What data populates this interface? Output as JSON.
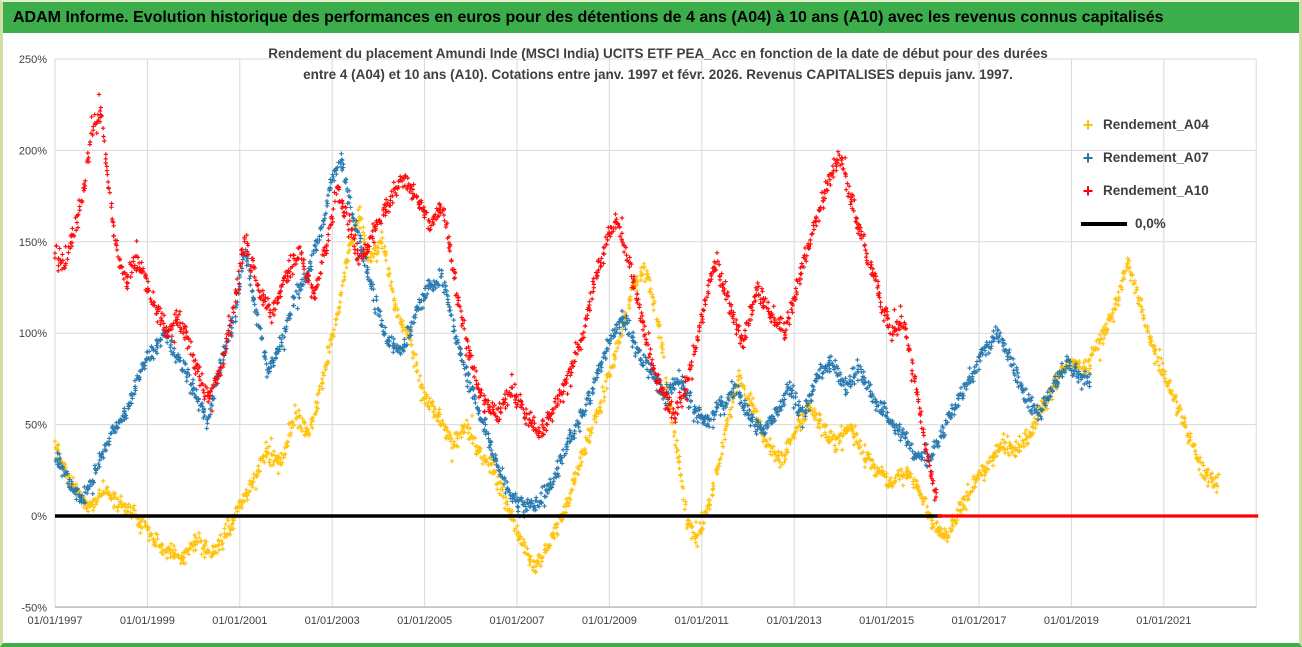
{
  "header": {
    "title": "ADAM Informe. Evolution historique des performances en euros pour des détentions de 4 ans (A04) à 10 ans (A10) avec les revenus connus capitalisés"
  },
  "chart_data": {
    "type": "scatter",
    "title_lines": [
      "Rendement du placement Amundi Inde (MSCI India) UCITS ETF PEA_Acc en fonction de la date de début pour des durées",
      "entre 4 (A04) et 10 ans (A10). Cotations entre janv. 1997 et févr. 2026. Revenus CAPITALISES depuis janv. 1997."
    ],
    "grid": true,
    "x_axis": {
      "start_year": 1997,
      "grid_end_year": 2023,
      "grid_step_years": 2,
      "tick_years": [
        1997,
        1999,
        2001,
        2003,
        2005,
        2007,
        2009,
        2011,
        2013,
        2015,
        2017,
        2019,
        2021
      ],
      "tick_labels": [
        "01/01/1997",
        "01/01/1999",
        "01/01/2001",
        "01/01/2003",
        "01/01/2005",
        "01/01/2007",
        "01/01/2009",
        "01/01/2011",
        "01/01/2013",
        "01/01/2015",
        "01/01/2017",
        "01/01/2019",
        "01/01/2021"
      ]
    },
    "y_axis": {
      "unit": "%",
      "min": -50,
      "max": 250,
      "tick_values": [
        250,
        200,
        150,
        100,
        50,
        0,
        -50
      ],
      "tick_labels": [
        "250%",
        "200%",
        "150%",
        "100%",
        "50%",
        "0%",
        "-50%"
      ]
    },
    "legend": {
      "position": "right",
      "entries": [
        {
          "label": "Rendement_A04",
          "color": "#FFC000",
          "marker": "+"
        },
        {
          "label": "Rendement_A07",
          "color": "#1F74AD",
          "marker": "+"
        },
        {
          "label": "Rendement_A10",
          "color": "#FF0000",
          "marker": "+"
        },
        {
          "label": "0,0%",
          "color": "#000000",
          "marker": "line"
        }
      ]
    },
    "zero_line": {
      "label": "0,0%",
      "color": "#000000",
      "value": 0,
      "from_year": 1997,
      "to_year": 2016.2,
      "width": 3.5
    },
    "series": [
      {
        "name": "Rendement_A04",
        "color": "#FFC000",
        "marker": "+",
        "spread": 7,
        "points_per_year": 80,
        "control_points": [
          [
            1997.0,
            40
          ],
          [
            1997.3,
            20
          ],
          [
            1997.7,
            6
          ],
          [
            1998.1,
            12
          ],
          [
            1998.5,
            5
          ],
          [
            1998.9,
            -5
          ],
          [
            1999.3,
            -18
          ],
          [
            1999.8,
            -23
          ],
          [
            2000.1,
            -12
          ],
          [
            2000.4,
            -20
          ],
          [
            2000.8,
            -5
          ],
          [
            2001.2,
            15
          ],
          [
            2001.6,
            35
          ],
          [
            2001.9,
            30
          ],
          [
            2002.2,
            55
          ],
          [
            2002.5,
            45
          ],
          [
            2002.8,
            75
          ],
          [
            2003.1,
            110
          ],
          [
            2003.4,
            150
          ],
          [
            2003.6,
            165
          ],
          [
            2003.8,
            140
          ],
          [
            2004.1,
            150
          ],
          [
            2004.4,
            110
          ],
          [
            2004.7,
            95
          ],
          [
            2005.0,
            65
          ],
          [
            2005.3,
            55
          ],
          [
            2005.6,
            40
          ],
          [
            2005.9,
            50
          ],
          [
            2006.2,
            35
          ],
          [
            2006.5,
            25
          ],
          [
            2006.8,
            5
          ],
          [
            2007.1,
            -15
          ],
          [
            2007.4,
            -28
          ],
          [
            2007.7,
            -15
          ],
          [
            2008.0,
            0
          ],
          [
            2008.3,
            25
          ],
          [
            2008.6,
            45
          ],
          [
            2008.9,
            70
          ],
          [
            2009.2,
            95
          ],
          [
            2009.5,
            125
          ],
          [
            2009.8,
            135
          ],
          [
            2010.1,
            100
          ],
          [
            2010.3,
            60
          ],
          [
            2010.5,
            30
          ],
          [
            2010.7,
            -5
          ],
          [
            2010.9,
            -13
          ],
          [
            2011.2,
            10
          ],
          [
            2011.5,
            45
          ],
          [
            2011.8,
            75
          ],
          [
            2012.1,
            60
          ],
          [
            2012.4,
            40
          ],
          [
            2012.7,
            30
          ],
          [
            2013.0,
            45
          ],
          [
            2013.3,
            60
          ],
          [
            2013.6,
            50
          ],
          [
            2013.9,
            40
          ],
          [
            2014.2,
            50
          ],
          [
            2014.5,
            35
          ],
          [
            2014.8,
            25
          ],
          [
            2015.1,
            18
          ],
          [
            2015.4,
            25
          ],
          [
            2015.7,
            15
          ],
          [
            2016.0,
            -5
          ],
          [
            2016.3,
            -12
          ],
          [
            2016.6,
            5
          ],
          [
            2016.9,
            18
          ],
          [
            2017.2,
            28
          ],
          [
            2017.5,
            40
          ],
          [
            2017.8,
            35
          ],
          [
            2018.1,
            45
          ],
          [
            2018.4,
            60
          ],
          [
            2018.7,
            75
          ],
          [
            2019.0,
            85
          ],
          [
            2019.3,
            80
          ],
          [
            2019.6,
            95
          ],
          [
            2019.9,
            110
          ],
          [
            2020.2,
            138
          ],
          [
            2020.4,
            125
          ],
          [
            2020.6,
            105
          ],
          [
            2020.8,
            90
          ],
          [
            2021.0,
            78
          ],
          [
            2021.3,
            60
          ],
          [
            2021.6,
            40
          ],
          [
            2021.9,
            22
          ],
          [
            2022.2,
            18
          ]
        ]
      },
      {
        "name": "Rendement_A07",
        "color": "#1F74AD",
        "marker": "+",
        "spread": 7,
        "points_per_year": 80,
        "control_points": [
          [
            1997.0,
            35
          ],
          [
            1997.3,
            18
          ],
          [
            1997.6,
            8
          ],
          [
            1997.9,
            25
          ],
          [
            1998.2,
            45
          ],
          [
            1998.5,
            55
          ],
          [
            1998.8,
            75
          ],
          [
            1999.1,
            90
          ],
          [
            1999.4,
            100
          ],
          [
            1999.7,
            85
          ],
          [
            2000.0,
            70
          ],
          [
            2000.3,
            50
          ],
          [
            2000.6,
            85
          ],
          [
            2000.9,
            110
          ],
          [
            2001.1,
            148
          ],
          [
            2001.3,
            120
          ],
          [
            2001.6,
            80
          ],
          [
            2001.9,
            95
          ],
          [
            2002.2,
            120
          ],
          [
            2002.5,
            135
          ],
          [
            2002.8,
            160
          ],
          [
            2003.0,
            185
          ],
          [
            2003.2,
            196
          ],
          [
            2003.4,
            170
          ],
          [
            2003.6,
            150
          ],
          [
            2003.9,
            120
          ],
          [
            2004.2,
            95
          ],
          [
            2004.5,
            90
          ],
          [
            2004.8,
            110
          ],
          [
            2005.1,
            125
          ],
          [
            2005.4,
            130
          ],
          [
            2005.7,
            95
          ],
          [
            2006.0,
            70
          ],
          [
            2006.3,
            50
          ],
          [
            2006.6,
            25
          ],
          [
            2006.9,
            10
          ],
          [
            2007.2,
            5
          ],
          [
            2007.5,
            8
          ],
          [
            2007.8,
            20
          ],
          [
            2008.1,
            40
          ],
          [
            2008.4,
            55
          ],
          [
            2008.7,
            75
          ],
          [
            2009.0,
            95
          ],
          [
            2009.3,
            110
          ],
          [
            2009.6,
            90
          ],
          [
            2009.9,
            80
          ],
          [
            2010.2,
            65
          ],
          [
            2010.5,
            75
          ],
          [
            2010.8,
            60
          ],
          [
            2011.1,
            50
          ],
          [
            2011.4,
            60
          ],
          [
            2011.7,
            70
          ],
          [
            2012.0,
            55
          ],
          [
            2012.3,
            45
          ],
          [
            2012.6,
            55
          ],
          [
            2012.9,
            70
          ],
          [
            2013.2,
            55
          ],
          [
            2013.5,
            75
          ],
          [
            2013.8,
            85
          ],
          [
            2014.1,
            70
          ],
          [
            2014.4,
            80
          ],
          [
            2014.7,
            65
          ],
          [
            2015.0,
            55
          ],
          [
            2015.3,
            45
          ],
          [
            2015.6,
            35
          ],
          [
            2015.9,
            30
          ],
          [
            2016.2,
            45
          ],
          [
            2016.5,
            60
          ],
          [
            2016.8,
            75
          ],
          [
            2017.1,
            90
          ],
          [
            2017.4,
            100
          ],
          [
            2017.7,
            85
          ],
          [
            2018.0,
            65
          ],
          [
            2018.3,
            55
          ],
          [
            2018.6,
            70
          ],
          [
            2018.9,
            85
          ],
          [
            2019.2,
            75
          ],
          [
            2019.4,
            72
          ]
        ]
      },
      {
        "name": "Rendement_A10",
        "color": "#FF0000",
        "marker": "+",
        "spread": 8,
        "points_per_year": 80,
        "control_points": [
          [
            1997.0,
            145
          ],
          [
            1997.2,
            135
          ],
          [
            1997.4,
            155
          ],
          [
            1997.6,
            175
          ],
          [
            1997.8,
            210
          ],
          [
            1998.0,
            220
          ],
          [
            1998.1,
            195
          ],
          [
            1998.3,
            150
          ],
          [
            1998.5,
            130
          ],
          [
            1998.8,
            140
          ],
          [
            1999.1,
            120
          ],
          [
            1999.4,
            100
          ],
          [
            1999.7,
            110
          ],
          [
            2000.0,
            85
          ],
          [
            2000.3,
            65
          ],
          [
            2000.6,
            80
          ],
          [
            2000.9,
            120
          ],
          [
            2001.1,
            150
          ],
          [
            2001.4,
            125
          ],
          [
            2001.7,
            110
          ],
          [
            2002.0,
            130
          ],
          [
            2002.3,
            145
          ],
          [
            2002.6,
            120
          ],
          [
            2002.9,
            150
          ],
          [
            2003.1,
            180
          ],
          [
            2003.3,
            165
          ],
          [
            2003.6,
            140
          ],
          [
            2003.9,
            155
          ],
          [
            2004.2,
            170
          ],
          [
            2004.5,
            185
          ],
          [
            2004.8,
            175
          ],
          [
            2005.1,
            160
          ],
          [
            2005.4,
            170
          ],
          [
            2005.7,
            120
          ],
          [
            2006.0,
            85
          ],
          [
            2006.3,
            60
          ],
          [
            2006.6,
            55
          ],
          [
            2006.9,
            70
          ],
          [
            2007.2,
            55
          ],
          [
            2007.5,
            45
          ],
          [
            2007.8,
            60
          ],
          [
            2008.1,
            75
          ],
          [
            2008.4,
            95
          ],
          [
            2008.7,
            130
          ],
          [
            2009.0,
            155
          ],
          [
            2009.2,
            160
          ],
          [
            2009.5,
            130
          ],
          [
            2009.8,
            95
          ],
          [
            2010.1,
            70
          ],
          [
            2010.4,
            55
          ],
          [
            2010.7,
            75
          ],
          [
            2011.0,
            110
          ],
          [
            2011.3,
            140
          ],
          [
            2011.6,
            115
          ],
          [
            2011.9,
            95
          ],
          [
            2012.2,
            125
          ],
          [
            2012.5,
            110
          ],
          [
            2012.8,
            100
          ],
          [
            2013.1,
            130
          ],
          [
            2013.4,
            155
          ],
          [
            2013.7,
            180
          ],
          [
            2014.0,
            198
          ],
          [
            2014.2,
            175
          ],
          [
            2014.5,
            150
          ],
          [
            2014.8,
            125
          ],
          [
            2015.1,
            100
          ],
          [
            2015.4,
            105
          ],
          [
            2015.7,
            60
          ],
          [
            2015.9,
            30
          ],
          [
            2016.1,
            8
          ]
        ],
        "flat_segment": {
          "from_year": 2016.1,
          "to_year": 2023.1,
          "value": 0,
          "width": 3.2
        }
      }
    ]
  }
}
